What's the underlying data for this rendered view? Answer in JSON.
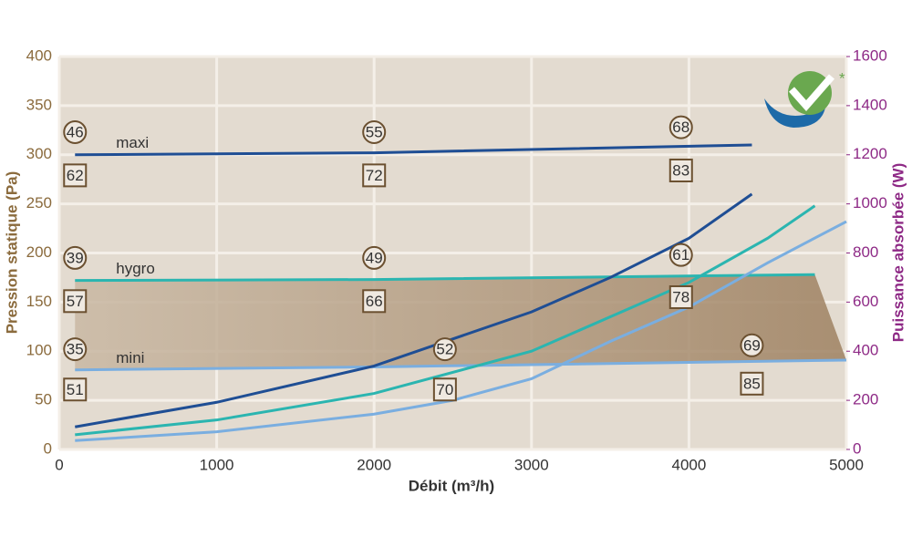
{
  "chart_data": {
    "type": "line",
    "xlabel": "Débit (m³/h)",
    "ylabel": "Pression statique (Pa)",
    "y2label": "Puissance absorbée (W)",
    "xlim": [
      0,
      5000
    ],
    "xticks": [
      0,
      1000,
      2000,
      3000,
      4000,
      5000
    ],
    "ylim": [
      0,
      400
    ],
    "yticks": [
      0,
      50,
      100,
      150,
      200,
      250,
      300,
      350,
      400
    ],
    "y2lim": [
      0,
      1600
    ],
    "y2ticks": [
      0,
      200,
      400,
      600,
      800,
      1000,
      1200,
      1400,
      1600
    ],
    "grid": true,
    "series": [
      {
        "name": "maxi",
        "color": "#1f4e94",
        "x": [
          100,
          2000,
          4400
        ],
        "values": [
          300,
          302,
          310
        ]
      },
      {
        "name": "hygro",
        "color": "#2bb5b0",
        "x": [
          100,
          2000,
          4800
        ],
        "values": [
          172,
          173,
          178
        ]
      },
      {
        "name": "mini",
        "color": "#7aaee0",
        "x": [
          100,
          2000,
          5000
        ],
        "values": [
          81,
          84,
          91
        ]
      },
      {
        "color": "#1f4e94",
        "axis": "y2",
        "x": [
          100,
          1000,
          2000,
          3000,
          3500,
          4000,
          4400
        ],
        "values": [
          92,
          192,
          340,
          560,
          700,
          860,
          1040
        ]
      },
      {
        "color": "#2bb5b0",
        "axis": "y2",
        "x": [
          100,
          1000,
          2000,
          3000,
          4000,
          4500,
          4800
        ],
        "values": [
          60,
          120,
          228,
          400,
          680,
          860,
          992
        ]
      },
      {
        "color": "#7aaee0",
        "axis": "y2",
        "x": [
          100,
          1000,
          2000,
          2500,
          3000,
          3500,
          4000,
          4500,
          5000
        ],
        "values": [
          36,
          72,
          144,
          200,
          288,
          440,
          580,
          760,
          928
        ]
      }
    ],
    "circled_labels": [
      {
        "value": 46,
        "x": 100,
        "y": 323
      },
      {
        "value": 55,
        "x": 2000,
        "y": 323
      },
      {
        "value": 68,
        "x": 3950,
        "y": 328
      },
      {
        "value": 39,
        "x": 100,
        "y": 195
      },
      {
        "value": 49,
        "x": 2000,
        "y": 195
      },
      {
        "value": 61,
        "x": 3950,
        "y": 198
      },
      {
        "value": 35,
        "x": 100,
        "y": 102
      },
      {
        "value": 52,
        "x": 2450,
        "y": 102
      },
      {
        "value": 69,
        "x": 4400,
        "y": 106
      }
    ],
    "boxed_labels": [
      {
        "value": 62,
        "x": 100,
        "y": 279
      },
      {
        "value": 72,
        "x": 2000,
        "y": 279
      },
      {
        "value": 83,
        "x": 3950,
        "y": 284
      },
      {
        "value": 57,
        "x": 100,
        "y": 151
      },
      {
        "value": 66,
        "x": 2000,
        "y": 151
      },
      {
        "value": 78,
        "x": 3950,
        "y": 155
      },
      {
        "value": 51,
        "x": 100,
        "y": 61
      },
      {
        "value": 70,
        "x": 2450,
        "y": 61
      },
      {
        "value": 85,
        "x": 4400,
        "y": 67
      }
    ]
  }
}
